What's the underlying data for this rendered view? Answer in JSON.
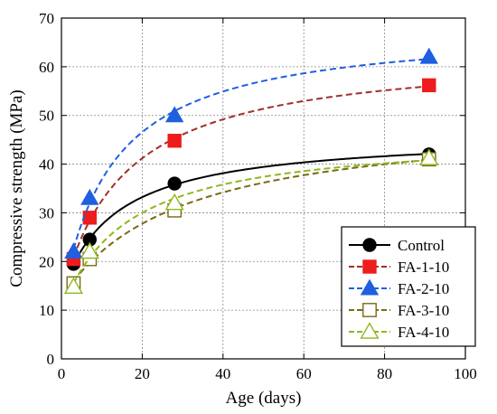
{
  "chart_data": {
    "type": "line",
    "title": "",
    "xlabel": "Age (days)",
    "ylabel": "Compressive strength (MPa)",
    "xlim": [
      0,
      100
    ],
    "ylim": [
      0,
      70
    ],
    "x_ticks": [
      "0",
      "20",
      "40",
      "60",
      "80",
      "100"
    ],
    "y_ticks": [
      "0",
      "10",
      "20",
      "30",
      "40",
      "50",
      "60",
      "70"
    ],
    "grid": true,
    "legend_position": "bottom-right",
    "series": [
      {
        "name": "Control",
        "color": "#000000",
        "line_style": "solid",
        "marker": "filled-circle",
        "x": [
          3,
          7,
          28,
          91
        ],
        "y": [
          19.5,
          24.5,
          36,
          42
        ]
      },
      {
        "name": "FA-1-10",
        "color": "#a0302a",
        "marker_color": "#ee1c1c",
        "line_style": "dashed",
        "marker": "filled-square",
        "x": [
          3,
          7,
          28,
          91
        ],
        "y": [
          20.5,
          29,
          44.8,
          56.2
        ]
      },
      {
        "name": "FA-2-10",
        "color": "#1f5fe0",
        "line_style": "dashed",
        "marker": "filled-triangle",
        "x": [
          3,
          7,
          28,
          91
        ],
        "y": [
          22,
          33,
          50,
          62
        ]
      },
      {
        "name": "FA-3-10",
        "color": "#7a6a14",
        "line_style": "dashed",
        "marker": "open-square",
        "x": [
          3,
          7,
          28,
          91
        ],
        "y": [
          15.5,
          20.5,
          30.5,
          41
        ]
      },
      {
        "name": "FA-4-10",
        "color": "#8fb81e",
        "line_style": "dashed",
        "marker": "open-triangle",
        "x": [
          3,
          7,
          28,
          91
        ],
        "y": [
          14.8,
          22,
          32,
          41.2
        ]
      }
    ]
  }
}
